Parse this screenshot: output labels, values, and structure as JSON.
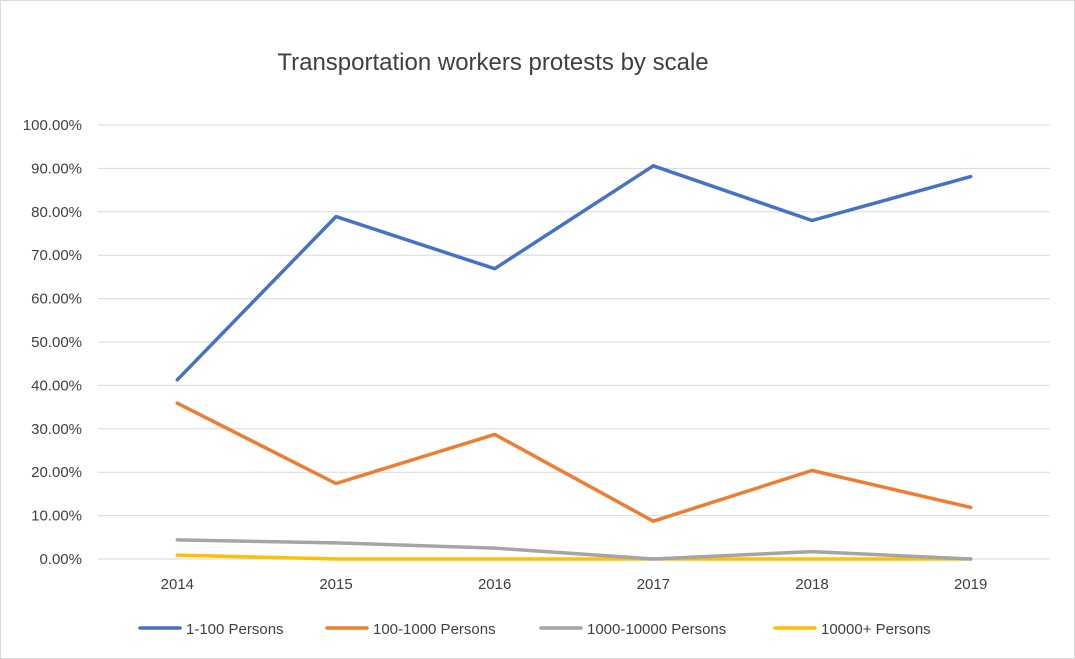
{
  "chart_data": {
    "type": "line",
    "title": "Transportation workers protests by scale",
    "xlabel": "",
    "ylabel": "",
    "categories": [
      "2014",
      "2015",
      "2016",
      "2017",
      "2018",
      "2019"
    ],
    "y_ticks": [
      "0.00%",
      "10.00%",
      "20.00%",
      "30.00%",
      "40.00%",
      "50.00%",
      "60.00%",
      "70.00%",
      "80.00%",
      "90.00%",
      "100.00%"
    ],
    "ylim": [
      0,
      100
    ],
    "grid": true,
    "legend_position": "bottom",
    "series": [
      {
        "name": "1-100 Persons",
        "color": "#4472c4",
        "values": [
          41.3,
          78.9,
          66.9,
          90.6,
          78.0,
          88.1
        ]
      },
      {
        "name": "100-1000 Persons",
        "color": "#ed7d31",
        "values": [
          35.9,
          17.4,
          28.7,
          8.7,
          20.4,
          11.9
        ]
      },
      {
        "name": "1000-10000 Persons",
        "color": "#a5a5a5",
        "values": [
          4.4,
          3.7,
          2.5,
          0.0,
          1.7,
          0.0
        ]
      },
      {
        "name": "10000+ Persons",
        "color": "#ffc000",
        "values": [
          0.9,
          0.0,
          0.0,
          0.0,
          0.0,
          0.0
        ]
      }
    ]
  }
}
